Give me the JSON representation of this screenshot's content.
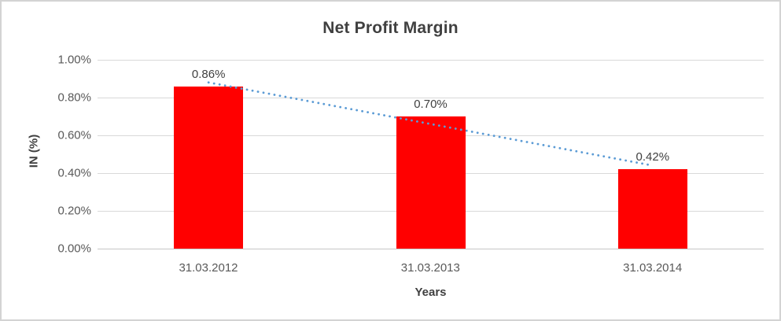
{
  "chart_data": {
    "type": "bar",
    "title": "Net Profit Margin",
    "categories": [
      "31.03.2012",
      "31.03.2013",
      "31.03.2014"
    ],
    "values": [
      0.86,
      0.7,
      0.42
    ],
    "data_labels": [
      "0.86%",
      "0.70%",
      "0.42%"
    ],
    "xlabel": "Years",
    "ylabel": "IN (%)",
    "ylim": [
      0,
      1.0
    ],
    "ytick_labels": [
      "0.00%",
      "0.20%",
      "0.40%",
      "0.60%",
      "0.80%",
      "1.00%"
    ],
    "grid": true,
    "legend": "none",
    "bar_color": "#ff0000",
    "trendline": {
      "type": "linear",
      "style": "dotted",
      "color": "#5b9bd5"
    },
    "colors": {
      "gridline": "#d9d9d9",
      "axis_line": "#c6c6c6",
      "title_text": "#404040",
      "tick_text": "#595959",
      "label_text": "#404040",
      "frame_border": "#d3d3d3",
      "background": "#ffffff"
    }
  }
}
